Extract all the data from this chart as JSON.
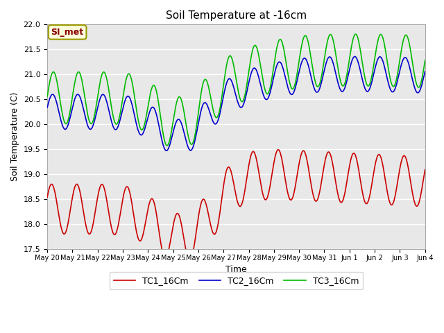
{
  "title": "Soil Temperature at -16cm",
  "xlabel": "Time",
  "ylabel": "Soil Temperature (C)",
  "ylim": [
    17.5,
    22.0
  ],
  "background_color": "#ffffff",
  "plot_bg_color": "#e8e8e8",
  "grid_color": "#ffffff",
  "annotation_text": "SI_met",
  "annotation_bg": "#ffffdd",
  "annotation_border": "#999900",
  "legend_entries": [
    "TC1_16Cm",
    "TC2_16Cm",
    "TC3_16Cm"
  ],
  "line_colors": [
    "#cc0000",
    "#0000cc",
    "#00bb00"
  ],
  "line_width": 1.2,
  "xtick_labels": [
    "May 20",
    "May 21",
    "May 22",
    "May 23",
    "May 24",
    "May 25",
    "May 26",
    "May 27",
    "May 28",
    "May 29",
    "May 30",
    "May 31",
    "Jun 1",
    "Jun 2",
    "Jun 3",
    "Jun 4"
  ],
  "n_points": 1440,
  "total_days": 15
}
